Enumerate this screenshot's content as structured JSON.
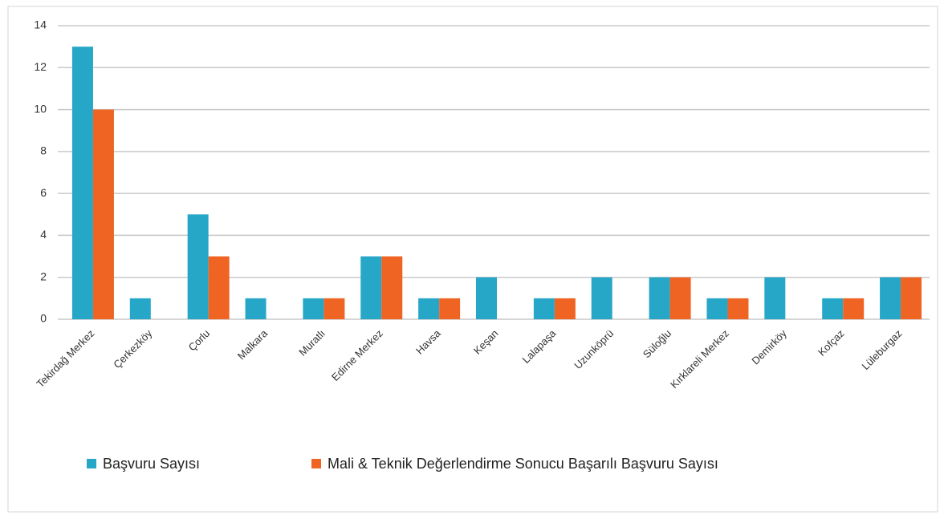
{
  "chart_data": {
    "type": "bar",
    "categories": [
      "Tekirdağ Merkez",
      "Çerkezköy",
      "Çorlu",
      "Malkara",
      "Muratlı",
      "Edirne Merkez",
      "Havsa",
      "Keşan",
      "Lalapaşa",
      "Uzunköprü",
      "Süloğlu",
      "Kırklareli Merkez",
      "Demirköy",
      "Kofçaz",
      "Lüleburgaz"
    ],
    "series": [
      {
        "name": "Başvuru Sayısı",
        "color": "#27a7c8",
        "values": [
          13,
          1,
          5,
          1,
          1,
          3,
          1,
          2,
          1,
          2,
          2,
          1,
          2,
          1,
          2
        ]
      },
      {
        "name": "Mali & Teknik Değerlendirme Sonucu Başarılı Başvuru Sayısı",
        "color": "#ef6423",
        "values": [
          10,
          0,
          3,
          0,
          1,
          3,
          1,
          0,
          1,
          0,
          2,
          1,
          0,
          1,
          2
        ]
      }
    ],
    "ylim": [
      0,
      14
    ],
    "yticks": [
      0,
      2,
      4,
      6,
      8,
      10,
      12,
      14
    ],
    "grid": true
  }
}
